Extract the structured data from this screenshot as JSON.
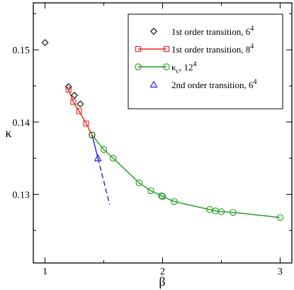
{
  "chart_data": {
    "type": "scatter",
    "title": "",
    "xlabel": "β",
    "ylabel": "κ",
    "xlim": [
      0.9,
      3.1
    ],
    "ylim": [
      0.1205,
      0.1565
    ],
    "xticks": [
      1,
      2,
      3
    ],
    "xtick_labels": [
      "1",
      "2",
      "3"
    ],
    "yticks": [
      0.13,
      0.14,
      0.15
    ],
    "ytick_labels": [
      "0.13",
      "0.14",
      "0.15"
    ],
    "grid": false,
    "legend_position": "top-right",
    "series": [
      {
        "name": "1st order transition, 6",
        "name_sup": "4",
        "marker": "diamond",
        "line": "none",
        "color": "#000000",
        "points": [
          [
            1.0,
            0.151
          ],
          [
            1.2,
            0.1449
          ],
          [
            1.25,
            0.1437
          ],
          [
            1.3,
            0.1425
          ]
        ]
      },
      {
        "name": "1st order transition, 8",
        "name_sup": "4",
        "marker": "square",
        "line": "solid",
        "color": "#e8251a",
        "points": [
          [
            1.2,
            0.1445
          ],
          [
            1.24,
            0.1428
          ],
          [
            1.29,
            0.1415
          ],
          [
            1.35,
            0.1398
          ],
          [
            1.4,
            0.1382
          ]
        ]
      },
      {
        "name": "κ",
        "name_sub": "c",
        "name_tail": ", 12",
        "name_sup": "4",
        "marker": "circle",
        "line": "solid",
        "color": "#1f9c1f",
        "points": [
          [
            1.4,
            0.1382
          ],
          [
            1.5,
            0.1362
          ],
          [
            1.58,
            0.135
          ],
          [
            1.8,
            0.1316
          ],
          [
            1.9,
            0.1305
          ],
          [
            1.99,
            0.1298
          ],
          [
            2.0,
            0.1297
          ],
          [
            2.1,
            0.129
          ],
          [
            2.4,
            0.1279
          ],
          [
            2.45,
            0.1277
          ],
          [
            2.5,
            0.1276
          ],
          [
            2.6,
            0.1275
          ],
          [
            3.0,
            0.1268
          ]
        ]
      },
      {
        "name": "2nd order transition, 6",
        "name_sup": "4",
        "marker": "triangle",
        "line": "none",
        "color": "#1a1aee",
        "points": [
          [
            1.45,
            0.135
          ]
        ]
      }
    ],
    "lines": [
      {
        "color": "#1a1aee",
        "style": "solid",
        "points": [
          [
            1.4,
            0.1382
          ],
          [
            1.45,
            0.135
          ]
        ]
      },
      {
        "color": "#1a1aee",
        "style": "dashed",
        "points": [
          [
            1.45,
            0.135
          ],
          [
            1.55,
            0.1286
          ]
        ]
      }
    ]
  }
}
